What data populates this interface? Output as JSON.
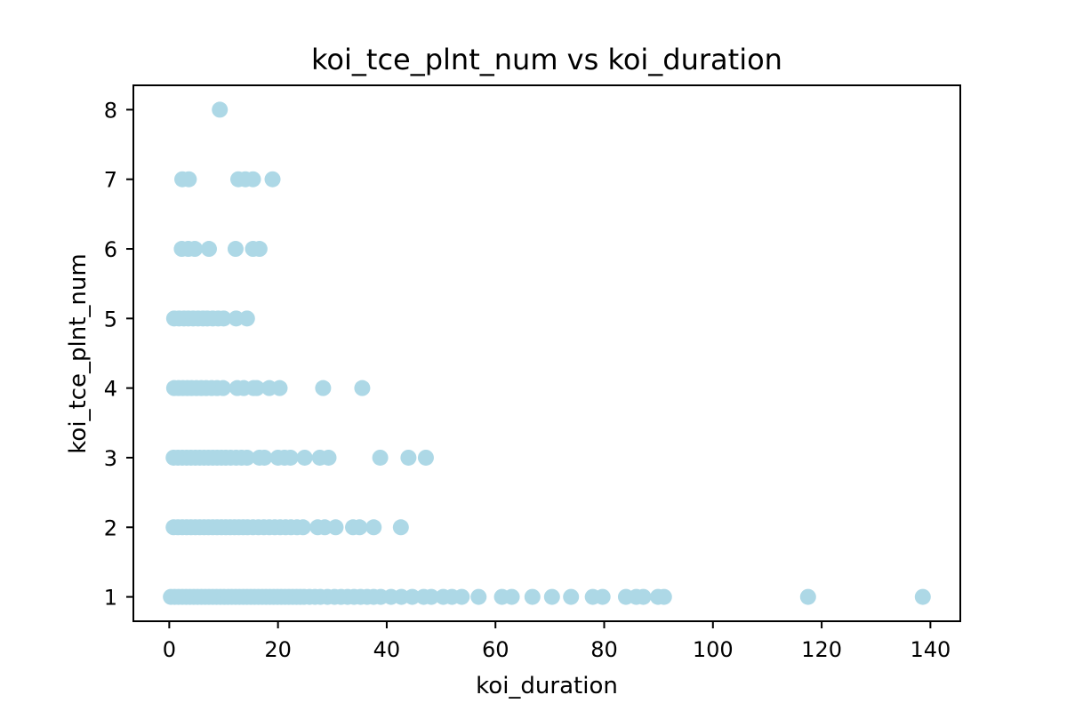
{
  "chart_data": {
    "type": "scatter",
    "title": "koi_tce_plnt_num vs koi_duration",
    "xlabel": "koi_duration",
    "ylabel": "koi_tce_plnt_num",
    "xlim": [
      -6.6,
      145.5
    ],
    "ylim": [
      0.65,
      8.35
    ],
    "xticks": [
      0,
      20,
      40,
      60,
      80,
      100,
      120,
      140
    ],
    "yticks": [
      1,
      2,
      3,
      4,
      5,
      6,
      7,
      8
    ],
    "grid": false,
    "marker_color": "#add8e6",
    "series": [
      {
        "points": [
          [
            9.3,
            8
          ],
          [
            2.4,
            7
          ],
          [
            3.6,
            7
          ],
          [
            12.7,
            7
          ],
          [
            14.0,
            7
          ],
          [
            15.4,
            7
          ],
          [
            19.0,
            7
          ],
          [
            2.3,
            6
          ],
          [
            3.5,
            6
          ],
          [
            4.7,
            6
          ],
          [
            7.3,
            6
          ],
          [
            12.2,
            6
          ],
          [
            15.4,
            6
          ],
          [
            16.6,
            6
          ],
          [
            0.9,
            5
          ],
          [
            1.8,
            5
          ],
          [
            2.7,
            5
          ],
          [
            3.5,
            5
          ],
          [
            4.4,
            5
          ],
          [
            5.3,
            5
          ],
          [
            6.2,
            5
          ],
          [
            7.0,
            5
          ],
          [
            8.0,
            5
          ],
          [
            9.0,
            5
          ],
          [
            10.0,
            5
          ],
          [
            12.3,
            5
          ],
          [
            14.3,
            5
          ],
          [
            0.9,
            4
          ],
          [
            1.7,
            4
          ],
          [
            2.5,
            4
          ],
          [
            3.3,
            4
          ],
          [
            4.1,
            4
          ],
          [
            5.0,
            4
          ],
          [
            5.9,
            4
          ],
          [
            6.8,
            4
          ],
          [
            7.8,
            4
          ],
          [
            8.8,
            4
          ],
          [
            9.9,
            4
          ],
          [
            12.5,
            4
          ],
          [
            13.7,
            4
          ],
          [
            15.5,
            4
          ],
          [
            16.1,
            4
          ],
          [
            18.4,
            4
          ],
          [
            20.3,
            4
          ],
          [
            28.3,
            4
          ],
          [
            35.5,
            4
          ],
          [
            0.8,
            3
          ],
          [
            1.6,
            3
          ],
          [
            2.4,
            3
          ],
          [
            3.2,
            3
          ],
          [
            4.0,
            3
          ],
          [
            4.8,
            3
          ],
          [
            5.6,
            3
          ],
          [
            6.4,
            3
          ],
          [
            7.2,
            3
          ],
          [
            8.0,
            3
          ],
          [
            8.8,
            3
          ],
          [
            9.6,
            3
          ],
          [
            10.4,
            3
          ],
          [
            11.3,
            3
          ],
          [
            12.3,
            3
          ],
          [
            13.3,
            3
          ],
          [
            14.3,
            3
          ],
          [
            16.6,
            3
          ],
          [
            17.5,
            3
          ],
          [
            20.0,
            3
          ],
          [
            21.2,
            3
          ],
          [
            22.3,
            3
          ],
          [
            24.9,
            3
          ],
          [
            27.7,
            3
          ],
          [
            29.3,
            3
          ],
          [
            38.8,
            3
          ],
          [
            44.0,
            3
          ],
          [
            47.2,
            3
          ],
          [
            0.8,
            2
          ],
          [
            1.6,
            2
          ],
          [
            2.4,
            2
          ],
          [
            3.2,
            2
          ],
          [
            4.0,
            2
          ],
          [
            4.8,
            2
          ],
          [
            5.6,
            2
          ],
          [
            6.4,
            2
          ],
          [
            7.2,
            2
          ],
          [
            8.0,
            2
          ],
          [
            8.8,
            2
          ],
          [
            9.6,
            2
          ],
          [
            10.4,
            2
          ],
          [
            11.2,
            2
          ],
          [
            12.0,
            2
          ],
          [
            12.8,
            2
          ],
          [
            13.6,
            2
          ],
          [
            14.4,
            2
          ],
          [
            15.4,
            2
          ],
          [
            16.4,
            2
          ],
          [
            17.4,
            2
          ],
          [
            18.4,
            2
          ],
          [
            19.4,
            2
          ],
          [
            20.4,
            2
          ],
          [
            21.4,
            2
          ],
          [
            22.4,
            2
          ],
          [
            23.5,
            2
          ],
          [
            24.6,
            2
          ],
          [
            27.3,
            2
          ],
          [
            28.6,
            2
          ],
          [
            30.6,
            2
          ],
          [
            33.8,
            2
          ],
          [
            35.0,
            2
          ],
          [
            37.6,
            2
          ],
          [
            42.6,
            2
          ],
          [
            0.3,
            1
          ],
          [
            1.0,
            1
          ],
          [
            1.7,
            1
          ],
          [
            2.4,
            1
          ],
          [
            3.1,
            1
          ],
          [
            3.8,
            1
          ],
          [
            4.5,
            1
          ],
          [
            5.2,
            1
          ],
          [
            5.9,
            1
          ],
          [
            6.6,
            1
          ],
          [
            7.3,
            1
          ],
          [
            8.0,
            1
          ],
          [
            8.7,
            1
          ],
          [
            9.4,
            1
          ],
          [
            10.1,
            1
          ],
          [
            10.8,
            1
          ],
          [
            11.5,
            1
          ],
          [
            12.2,
            1
          ],
          [
            12.9,
            1
          ],
          [
            13.6,
            1
          ],
          [
            14.3,
            1
          ],
          [
            15.0,
            1
          ],
          [
            15.7,
            1
          ],
          [
            16.4,
            1
          ],
          [
            17.1,
            1
          ],
          [
            17.8,
            1
          ],
          [
            18.5,
            1
          ],
          [
            19.2,
            1
          ],
          [
            19.9,
            1
          ],
          [
            20.6,
            1
          ],
          [
            21.3,
            1
          ],
          [
            22.0,
            1
          ],
          [
            22.7,
            1
          ],
          [
            23.4,
            1
          ],
          [
            24.1,
            1
          ],
          [
            24.8,
            1
          ],
          [
            25.8,
            1
          ],
          [
            26.8,
            1
          ],
          [
            27.8,
            1
          ],
          [
            29.1,
            1
          ],
          [
            30.4,
            1
          ],
          [
            31.6,
            1
          ],
          [
            32.8,
            1
          ],
          [
            34.0,
            1
          ],
          [
            35.2,
            1
          ],
          [
            36.4,
            1
          ],
          [
            37.6,
            1
          ],
          [
            38.9,
            1
          ],
          [
            40.8,
            1
          ],
          [
            42.7,
            1
          ],
          [
            44.7,
            1
          ],
          [
            46.8,
            1
          ],
          [
            48.2,
            1
          ],
          [
            50.4,
            1
          ],
          [
            52.0,
            1
          ],
          [
            53.8,
            1
          ],
          [
            56.9,
            1
          ],
          [
            61.2,
            1
          ],
          [
            63.0,
            1
          ],
          [
            66.8,
            1
          ],
          [
            70.4,
            1
          ],
          [
            73.9,
            1
          ],
          [
            77.9,
            1
          ],
          [
            79.7,
            1
          ],
          [
            84.0,
            1
          ],
          [
            85.9,
            1
          ],
          [
            87.2,
            1
          ],
          [
            89.9,
            1
          ],
          [
            91.0,
            1
          ],
          [
            117.5,
            1
          ],
          [
            138.6,
            1
          ]
        ]
      }
    ]
  }
}
